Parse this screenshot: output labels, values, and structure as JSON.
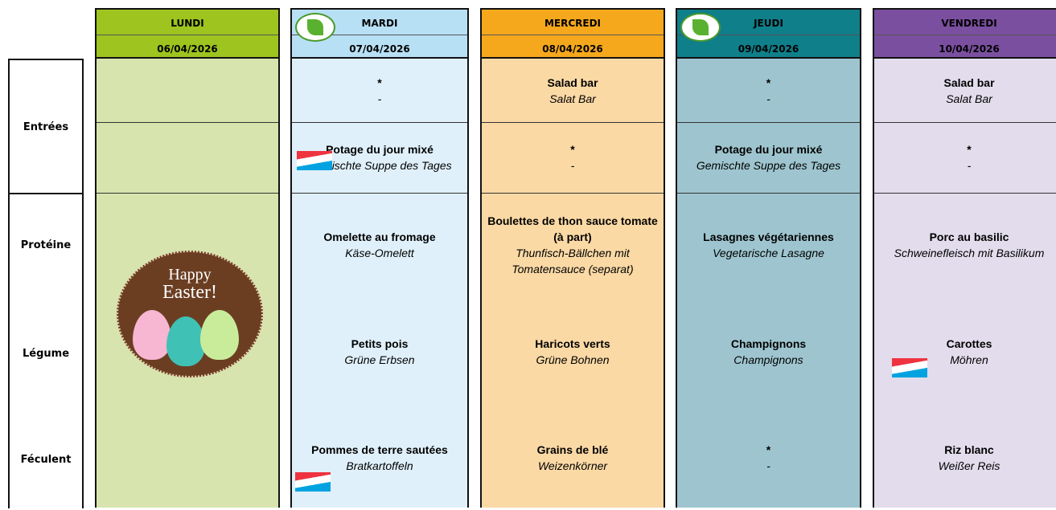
{
  "row_labels": [
    "Entrées",
    "Protéine",
    "Légume",
    "Féculent"
  ],
  "days": [
    {
      "name": "LUNDI",
      "date": "06/04/2026",
      "header_color": "#9dc41f",
      "body_color": "#d7e4ae",
      "badge": [
        "Happy",
        "Easter!"
      ]
    },
    {
      "name": "MARDI",
      "date": "07/04/2026",
      "header_color": "#b8e0f5",
      "body_color": "#e0f0fa",
      "entree1": {
        "fr": "*",
        "de": "-"
      },
      "entree2": {
        "fr": "Potage du jour mixé",
        "de": "Gemischte Suppe des Tages"
      },
      "proteine": {
        "fr": "Omelette au fromage",
        "de": "Käse-Omelett"
      },
      "legume": {
        "fr": "Petits pois",
        "de": "Grüne Erbsen"
      },
      "feculent": {
        "fr": "Pommes de terre sautées",
        "de": "Bratkartoffeln"
      }
    },
    {
      "name": "MERCREDI",
      "date": "08/04/2026",
      "header_color": "#f5a81c",
      "body_color": "#fbd9a5",
      "entree1": {
        "fr": "Salad bar",
        "de": "Salat Bar"
      },
      "entree2": {
        "fr": "*",
        "de": "-"
      },
      "proteine": {
        "fr": "Boulettes de thon sauce tomate (à part)",
        "de": "Thunfisch-Bällchen mit Tomatensauce (separat)"
      },
      "legume": {
        "fr": "Haricots verts",
        "de": "Grüne Bohnen"
      },
      "feculent": {
        "fr": "Grains de blé",
        "de": "Weizenkörner"
      }
    },
    {
      "name": "JEUDI",
      "date": "09/04/2026",
      "header_color": "#0f7f8a",
      "body_color": "#9ec5cf",
      "entree1": {
        "fr": "*",
        "de": "-"
      },
      "entree2": {
        "fr": "Potage du jour mixé",
        "de": "Gemischte Suppe des Tages"
      },
      "proteine": {
        "fr": "Lasagnes végétariennes",
        "de": "Vegetarische Lasagne"
      },
      "legume": {
        "fr": "Champignons",
        "de": "Champignons"
      },
      "feculent": {
        "fr": "*",
        "de": "-"
      }
    },
    {
      "name": "VENDREDI",
      "date": "10/04/2026",
      "header_color": "#7b4fa0",
      "body_color": "#e2dcec",
      "entree1": {
        "fr": "Salad bar",
        "de": "Salat Bar"
      },
      "entree2": {
        "fr": "*",
        "de": "-"
      },
      "proteine": {
        "fr": "Porc au basilic",
        "de": "Schweinefleisch mit Basilikum"
      },
      "legume": {
        "fr": "Carottes",
        "de": "Möhren"
      },
      "feculent": {
        "fr": "Riz blanc",
        "de": "Weißer Reis"
      }
    }
  ]
}
